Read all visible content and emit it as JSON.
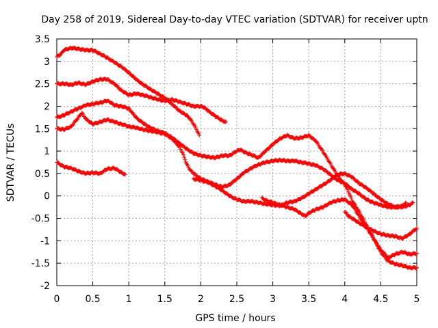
{
  "chart_data": {
    "type": "scatter",
    "title": "Day 258 of 2019, Sidereal Day-to-day VTEC variation (SDTVAR) for receiver uptn",
    "xlabel": "GPS time / hours",
    "ylabel": "SDTVAR / TECUs",
    "xlim": [
      0,
      5
    ],
    "ylim": [
      -2,
      3.5
    ],
    "grid": true,
    "marker": "+",
    "color": "#ff0000",
    "xticks": [
      0,
      0.5,
      1,
      1.5,
      2,
      2.5,
      3,
      3.5,
      4,
      4.5,
      5
    ],
    "xtick_labels": [
      "0",
      "0.5",
      "1",
      "1.5",
      "2",
      "2.5",
      "3",
      "3.5",
      "4",
      "4.5",
      "5"
    ],
    "yticks": [
      -2,
      -1.5,
      -1,
      -0.5,
      0,
      0.5,
      1,
      1.5,
      2,
      2.5,
      3,
      3.5
    ],
    "ytick_labels": [
      "-2",
      "-1.5",
      "-1",
      "-0.5",
      "0",
      "0.5",
      "1",
      "1.5",
      "2",
      "2.5",
      "3",
      "3.5"
    ],
    "series": [
      {
        "name": "s1",
        "points": [
          [
            0,
            3.1
          ],
          [
            0.05,
            3.15
          ],
          [
            0.1,
            3.25
          ],
          [
            0.2,
            3.3
          ],
          [
            0.3,
            3.28
          ],
          [
            0.4,
            3.25
          ],
          [
            0.5,
            3.25
          ],
          [
            0.6,
            3.17
          ],
          [
            0.7,
            3.08
          ],
          [
            0.8,
            2.98
          ],
          [
            0.9,
            2.88
          ],
          [
            1.0,
            2.75
          ],
          [
            1.1,
            2.6
          ],
          [
            1.2,
            2.48
          ],
          [
            1.3,
            2.38
          ],
          [
            1.4,
            2.28
          ],
          [
            1.5,
            2.18
          ],
          [
            1.6,
            2.05
          ],
          [
            1.7,
            1.9
          ],
          [
            1.75,
            1.85
          ],
          [
            1.8,
            1.8
          ],
          [
            1.85,
            1.72
          ],
          [
            1.9,
            1.6
          ],
          [
            1.95,
            1.45
          ],
          [
            1.98,
            1.35
          ]
        ]
      },
      {
        "name": "s2",
        "points": [
          [
            0,
            2.5
          ],
          [
            0.1,
            2.5
          ],
          [
            0.2,
            2.48
          ],
          [
            0.3,
            2.52
          ],
          [
            0.4,
            2.48
          ],
          [
            0.5,
            2.55
          ],
          [
            0.6,
            2.6
          ],
          [
            0.7,
            2.6
          ],
          [
            0.8,
            2.5
          ],
          [
            0.9,
            2.35
          ],
          [
            1.0,
            2.25
          ],
          [
            1.1,
            2.28
          ],
          [
            1.2,
            2.25
          ],
          [
            1.3,
            2.2
          ],
          [
            1.4,
            2.15
          ],
          [
            1.5,
            2.12
          ],
          [
            1.6,
            2.15
          ],
          [
            1.7,
            2.1
          ],
          [
            1.8,
            2.05
          ],
          [
            1.9,
            2.0
          ],
          [
            2.0,
            2.0
          ],
          [
            2.05,
            1.97
          ],
          [
            2.1,
            1.9
          ],
          [
            2.2,
            1.78
          ],
          [
            2.3,
            1.68
          ],
          [
            2.35,
            1.65
          ]
        ]
      },
      {
        "name": "s3",
        "points": [
          [
            0,
            1.75
          ],
          [
            0.1,
            1.8
          ],
          [
            0.2,
            1.88
          ],
          [
            0.3,
            1.95
          ],
          [
            0.4,
            2.02
          ],
          [
            0.5,
            2.05
          ],
          [
            0.6,
            2.08
          ],
          [
            0.7,
            2.12
          ],
          [
            0.75,
            2.08
          ],
          [
            0.8,
            2.02
          ],
          [
            0.9,
            2.0
          ],
          [
            1.0,
            1.95
          ],
          [
            1.05,
            1.85
          ],
          [
            1.1,
            1.75
          ],
          [
            1.2,
            1.62
          ],
          [
            1.3,
            1.52
          ],
          [
            1.4,
            1.45
          ],
          [
            1.5,
            1.4
          ],
          [
            1.6,
            1.3
          ],
          [
            1.7,
            1.18
          ],
          [
            1.8,
            1.05
          ],
          [
            1.9,
            0.95
          ],
          [
            2.0,
            0.9
          ],
          [
            2.1,
            0.87
          ],
          [
            2.2,
            0.85
          ],
          [
            2.3,
            0.9
          ],
          [
            2.4,
            0.9
          ],
          [
            2.5,
            1.0
          ],
          [
            2.55,
            1.03
          ],
          [
            2.6,
            0.98
          ],
          [
            2.7,
            0.92
          ],
          [
            2.8,
            0.85
          ],
          [
            2.9,
            1.0
          ],
          [
            3.0,
            1.15
          ],
          [
            3.1,
            1.28
          ],
          [
            3.2,
            1.35
          ],
          [
            3.3,
            1.28
          ],
          [
            3.4,
            1.3
          ],
          [
            3.5,
            1.35
          ],
          [
            3.6,
            1.22
          ],
          [
            3.7,
            0.98
          ],
          [
            3.8,
            0.72
          ],
          [
            3.9,
            0.45
          ],
          [
            4.0,
            0.25
          ],
          [
            4.05,
            0.1
          ],
          [
            4.1,
            -0.1
          ],
          [
            4.2,
            -0.35
          ],
          [
            4.3,
            -0.65
          ],
          [
            4.4,
            -0.95
          ],
          [
            4.5,
            -1.25
          ],
          [
            4.6,
            -1.45
          ],
          [
            4.7,
            -1.52
          ],
          [
            4.8,
            -1.55
          ],
          [
            4.9,
            -1.6
          ],
          [
            5.0,
            -1.6
          ]
        ]
      },
      {
        "name": "s4",
        "points": [
          [
            0,
            1.5
          ],
          [
            0.1,
            1.48
          ],
          [
            0.2,
            1.55
          ],
          [
            0.3,
            1.75
          ],
          [
            0.35,
            1.85
          ],
          [
            0.4,
            1.72
          ],
          [
            0.5,
            1.6
          ],
          [
            0.6,
            1.65
          ],
          [
            0.7,
            1.7
          ],
          [
            0.8,
            1.65
          ],
          [
            0.9,
            1.6
          ],
          [
            1.0,
            1.55
          ],
          [
            1.1,
            1.52
          ],
          [
            1.2,
            1.48
          ],
          [
            1.3,
            1.45
          ],
          [
            1.4,
            1.42
          ],
          [
            1.5,
            1.38
          ],
          [
            1.6,
            1.28
          ],
          [
            1.7,
            1.1
          ],
          [
            1.75,
            0.95
          ],
          [
            1.8,
            0.72
          ],
          [
            1.85,
            0.58
          ],
          [
            1.9,
            0.5
          ],
          [
            2.0,
            0.38
          ],
          [
            2.1,
            0.32
          ],
          [
            2.2,
            0.25
          ],
          [
            2.3,
            0.2
          ],
          [
            2.4,
            0.25
          ],
          [
            2.5,
            0.38
          ],
          [
            2.6,
            0.52
          ],
          [
            2.7,
            0.62
          ],
          [
            2.8,
            0.7
          ],
          [
            2.9,
            0.75
          ],
          [
            3.0,
            0.78
          ],
          [
            3.1,
            0.8
          ],
          [
            3.2,
            0.78
          ],
          [
            3.3,
            0.78
          ],
          [
            3.4,
            0.75
          ],
          [
            3.5,
            0.72
          ],
          [
            3.6,
            0.68
          ],
          [
            3.7,
            0.6
          ],
          [
            3.8,
            0.48
          ],
          [
            3.9,
            0.35
          ],
          [
            4.0,
            0.28
          ],
          [
            4.1,
            0.15
          ],
          [
            4.2,
            0.05
          ],
          [
            4.3,
            -0.08
          ],
          [
            4.4,
            -0.15
          ],
          [
            4.5,
            -0.2
          ],
          [
            4.6,
            -0.25
          ],
          [
            4.7,
            -0.25
          ],
          [
            4.8,
            -0.22
          ],
          [
            4.85,
            -0.15
          ]
        ]
      },
      {
        "name": "s5",
        "points": [
          [
            0,
            0.75
          ],
          [
            0.1,
            0.65
          ],
          [
            0.2,
            0.62
          ],
          [
            0.3,
            0.55
          ],
          [
            0.4,
            0.5
          ],
          [
            0.5,
            0.52
          ],
          [
            0.6,
            0.5
          ],
          [
            0.7,
            0.6
          ],
          [
            0.8,
            0.62
          ],
          [
            0.9,
            0.52
          ],
          [
            0.95,
            0.48
          ]
        ]
      },
      {
        "name": "s6",
        "points": [
          [
            1.9,
            0.38
          ],
          [
            2.0,
            0.35
          ],
          [
            2.1,
            0.3
          ],
          [
            2.2,
            0.22
          ],
          [
            2.3,
            0.12
          ],
          [
            2.4,
            0.0
          ],
          [
            2.5,
            -0.08
          ],
          [
            2.6,
            -0.12
          ],
          [
            2.7,
            -0.12
          ],
          [
            2.8,
            -0.15
          ],
          [
            2.9,
            -0.18
          ],
          [
            3.0,
            -0.2
          ],
          [
            3.1,
            -0.22
          ],
          [
            3.2,
            -0.15
          ],
          [
            3.3,
            -0.12
          ],
          [
            3.4,
            -0.05
          ],
          [
            3.5,
            0.05
          ],
          [
            3.6,
            0.15
          ],
          [
            3.7,
            0.25
          ],
          [
            3.8,
            0.35
          ],
          [
            3.9,
            0.48
          ],
          [
            4.0,
            0.5
          ],
          [
            4.1,
            0.42
          ],
          [
            4.2,
            0.28
          ],
          [
            4.3,
            0.18
          ],
          [
            4.4,
            0.05
          ],
          [
            4.5,
            -0.08
          ],
          [
            4.6,
            -0.18
          ],
          [
            4.7,
            -0.25
          ],
          [
            4.8,
            -0.25
          ],
          [
            4.9,
            -0.2
          ],
          [
            4.95,
            -0.15
          ]
        ]
      },
      {
        "name": "s7",
        "points": [
          [
            2.85,
            -0.05
          ],
          [
            2.9,
            -0.1
          ],
          [
            3.0,
            -0.15
          ],
          [
            3.1,
            -0.2
          ],
          [
            3.2,
            -0.25
          ],
          [
            3.3,
            -0.3
          ],
          [
            3.4,
            -0.4
          ],
          [
            3.45,
            -0.45
          ],
          [
            3.5,
            -0.38
          ],
          [
            3.6,
            -0.3
          ],
          [
            3.7,
            -0.25
          ],
          [
            3.8,
            -0.15
          ],
          [
            3.9,
            -0.1
          ],
          [
            4.0,
            -0.08
          ],
          [
            4.1,
            -0.2
          ],
          [
            4.2,
            -0.45
          ],
          [
            4.3,
            -0.7
          ],
          [
            4.4,
            -0.95
          ],
          [
            4.5,
            -1.2
          ],
          [
            4.6,
            -1.38
          ],
          [
            4.7,
            -1.3
          ],
          [
            4.8,
            -1.25
          ],
          [
            4.9,
            -1.3
          ],
          [
            5.0,
            -1.28
          ]
        ]
      },
      {
        "name": "s8",
        "points": [
          [
            4.0,
            -0.35
          ],
          [
            4.05,
            -0.45
          ],
          [
            4.1,
            -0.5
          ],
          [
            4.2,
            -0.6
          ],
          [
            4.3,
            -0.7
          ],
          [
            4.4,
            -0.78
          ],
          [
            4.5,
            -0.85
          ],
          [
            4.6,
            -0.88
          ],
          [
            4.7,
            -0.9
          ],
          [
            4.8,
            -0.95
          ],
          [
            4.9,
            -0.85
          ],
          [
            5.0,
            -0.72
          ]
        ]
      }
    ]
  }
}
